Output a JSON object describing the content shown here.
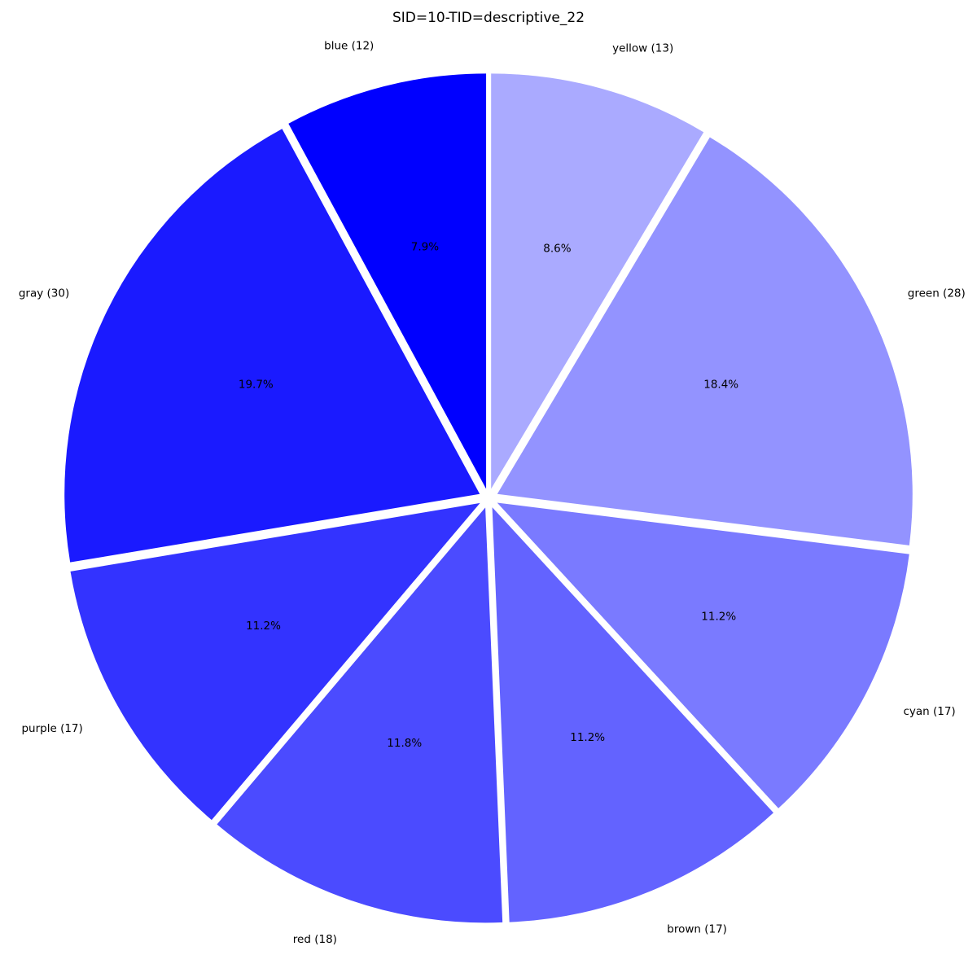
{
  "chart_data": {
    "type": "pie",
    "title": "SID=10-TID=descriptive_22",
    "start_angle_deg": 90,
    "direction": "counterclockwise",
    "slices": [
      {
        "label": "blue (12)",
        "value": 12,
        "percent_label": "7.9%",
        "color": "#0000ff",
        "exploded": true
      },
      {
        "label": "gray (30)",
        "value": 30,
        "percent_label": "19.7%",
        "color": "#1a1aff",
        "exploded": true
      },
      {
        "label": "purple (17)",
        "value": 17,
        "percent_label": "11.2%",
        "color": "#3333ff",
        "exploded": true
      },
      {
        "label": "red (18)",
        "value": 18,
        "percent_label": "11.8%",
        "color": "#4b4bff",
        "exploded": true
      },
      {
        "label": "brown (17)",
        "value": 17,
        "percent_label": "11.2%",
        "color": "#6363ff",
        "exploded": true
      },
      {
        "label": "cyan (17)",
        "value": 17,
        "percent_label": "11.2%",
        "color": "#7a7aff",
        "exploded": true
      },
      {
        "label": "green (28)",
        "value": 28,
        "percent_label": "18.4%",
        "color": "#9393ff",
        "exploded": true
      },
      {
        "label": "yellow (13)",
        "value": 13,
        "percent_label": "8.6%",
        "color": "#aaaaff",
        "exploded": true
      }
    ]
  }
}
